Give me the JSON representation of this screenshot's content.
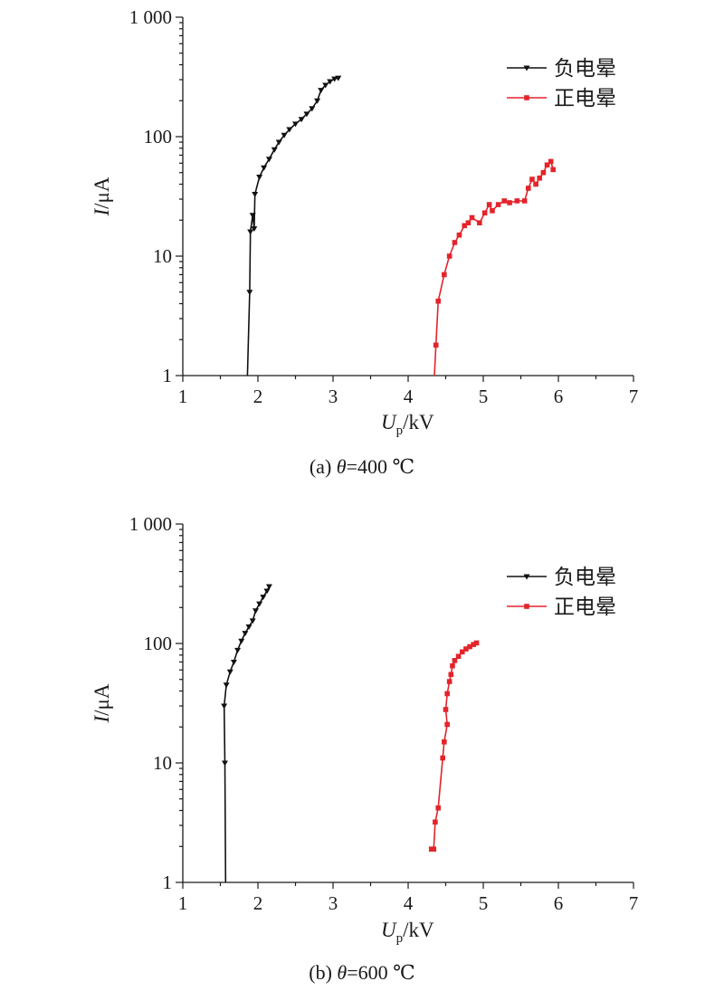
{
  "colors": {
    "negative": "#111111",
    "positive": "#e3242b",
    "axis": "#1a1a1a"
  },
  "chart_data": [
    {
      "type": "line",
      "caption_prefix": "(a) ",
      "caption_symbol": "θ",
      "caption_rest": "=400 ℃",
      "xlabel_main": "U",
      "xlabel_sub": "p",
      "xlabel_unit": "/kV",
      "ylabel_main": "I",
      "ylabel_unit": "/μA",
      "xlim": [
        1,
        7
      ],
      "ylim": [
        1,
        1000
      ],
      "yscale": "log",
      "x_ticks": [
        "1",
        "2",
        "3",
        "4",
        "5",
        "6",
        "7"
      ],
      "y_ticks": [
        "1",
        "10",
        "100",
        "1 000"
      ],
      "legend_position": "top-right",
      "series": [
        {
          "name": "负电晕",
          "marker": "triangle-down",
          "color": "#111111",
          "points": [
            [
              1.86,
              1
            ],
            [
              1.89,
              5
            ],
            [
              1.9,
              16
            ],
            [
              1.93,
              22
            ],
            [
              1.95,
              17
            ],
            [
              1.96,
              33
            ],
            [
              2.02,
              46
            ],
            [
              2.08,
              55
            ],
            [
              2.15,
              65
            ],
            [
              2.22,
              78
            ],
            [
              2.28,
              90
            ],
            [
              2.35,
              103
            ],
            [
              2.42,
              115
            ],
            [
              2.5,
              128
            ],
            [
              2.58,
              140
            ],
            [
              2.65,
              155
            ],
            [
              2.72,
              172
            ],
            [
              2.79,
              200
            ],
            [
              2.84,
              245
            ],
            [
              2.9,
              270
            ],
            [
              2.96,
              290
            ],
            [
              3.02,
              305
            ],
            [
              3.07,
              310
            ]
          ]
        },
        {
          "name": "正电晕",
          "marker": "square",
          "color": "#e3242b",
          "points": [
            [
              4.35,
              1
            ],
            [
              4.37,
              1.8
            ],
            [
              4.4,
              4.2
            ],
            [
              4.48,
              7
            ],
            [
              4.55,
              10
            ],
            [
              4.62,
              13
            ],
            [
              4.68,
              15
            ],
            [
              4.75,
              18
            ],
            [
              4.8,
              19
            ],
            [
              4.85,
              21
            ],
            [
              4.95,
              19
            ],
            [
              5.02,
              23
            ],
            [
              5.08,
              27
            ],
            [
              5.12,
              24
            ],
            [
              5.2,
              27
            ],
            [
              5.28,
              29
            ],
            [
              5.35,
              28
            ],
            [
              5.45,
              29
            ],
            [
              5.55,
              29
            ],
            [
              5.6,
              37
            ],
            [
              5.65,
              44
            ],
            [
              5.7,
              40
            ],
            [
              5.75,
              45
            ],
            [
              5.8,
              50
            ],
            [
              5.85,
              58
            ],
            [
              5.9,
              62
            ],
            [
              5.93,
              53
            ]
          ]
        }
      ]
    },
    {
      "type": "line",
      "caption_prefix": "(b) ",
      "caption_symbol": "θ",
      "caption_rest": "=600 ℃",
      "xlabel_main": "U",
      "xlabel_sub": "p",
      "xlabel_unit": "/kV",
      "ylabel_main": "I",
      "ylabel_unit": "/μA",
      "xlim": [
        1,
        7
      ],
      "ylim": [
        1,
        1000
      ],
      "yscale": "log",
      "x_ticks": [
        "1",
        "2",
        "3",
        "4",
        "5",
        "6",
        "7"
      ],
      "y_ticks": [
        "1",
        "10",
        "100",
        "1 000"
      ],
      "legend_position": "top-right",
      "series": [
        {
          "name": "负电晕",
          "marker": "triangle-down",
          "color": "#111111",
          "points": [
            [
              1.57,
              1
            ],
            [
              1.56,
              10
            ],
            [
              1.55,
              30
            ],
            [
              1.58,
              45
            ],
            [
              1.63,
              58
            ],
            [
              1.68,
              70
            ],
            [
              1.73,
              88
            ],
            [
              1.78,
              105
            ],
            [
              1.83,
              122
            ],
            [
              1.88,
              138
            ],
            [
              1.93,
              155
            ],
            [
              1.97,
              188
            ],
            [
              2.02,
              215
            ],
            [
              2.07,
              245
            ],
            [
              2.12,
              275
            ],
            [
              2.15,
              300
            ]
          ]
        },
        {
          "name": "正电晕",
          "marker": "square",
          "color": "#e3242b",
          "points": [
            [
              4.31,
              1.9
            ],
            [
              4.34,
              1.9
            ],
            [
              4.36,
              3.2
            ],
            [
              4.4,
              4.2
            ],
            [
              4.46,
              11
            ],
            [
              4.48,
              15
            ],
            [
              4.52,
              21
            ],
            [
              4.5,
              28
            ],
            [
              4.52,
              38
            ],
            [
              4.55,
              48
            ],
            [
              4.57,
              55
            ],
            [
              4.59,
              65
            ],
            [
              4.62,
              72
            ],
            [
              4.67,
              78
            ],
            [
              4.72,
              85
            ],
            [
              4.77,
              90
            ],
            [
              4.82,
              94
            ],
            [
              4.87,
              98
            ],
            [
              4.91,
              101
            ]
          ]
        }
      ]
    }
  ]
}
